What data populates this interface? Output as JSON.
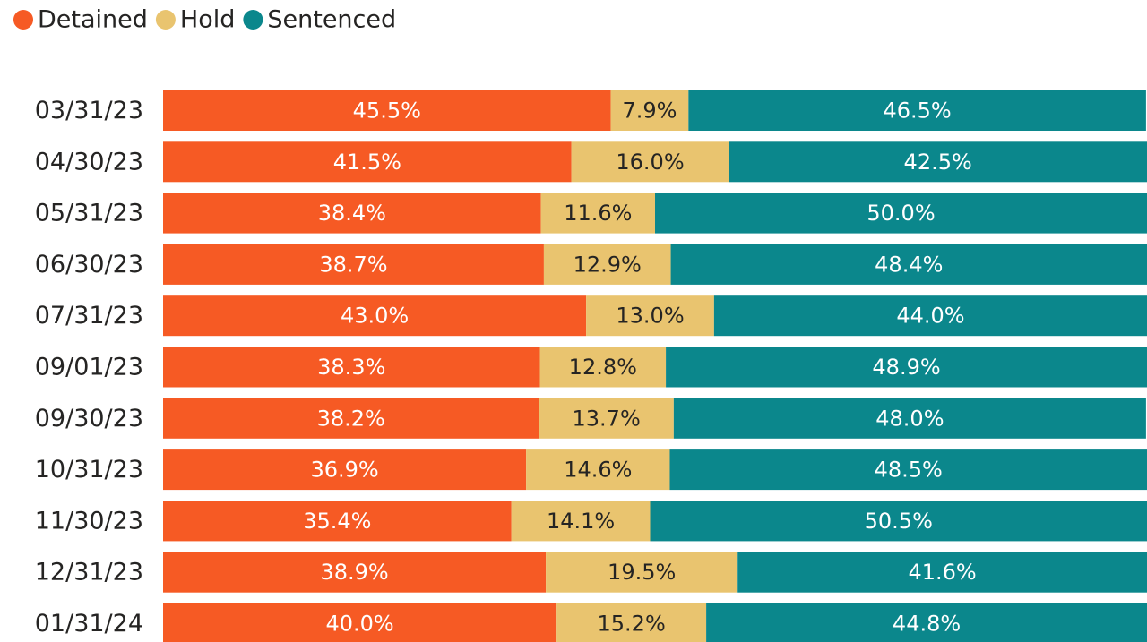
{
  "chart_data": {
    "type": "stacked-bar-horizontal",
    "categories": [
      "03/31/23",
      "04/30/23",
      "05/31/23",
      "06/30/23",
      "07/31/23",
      "09/01/23",
      "09/30/23",
      "10/31/23",
      "11/30/23",
      "12/31/23",
      "01/31/24"
    ],
    "xlim": [
      0,
      100
    ],
    "legend": "top-left",
    "series": [
      {
        "name": "Detained",
        "color": "#f65a24",
        "label_color": "#ffffff",
        "values": [
          45.5,
          41.5,
          38.4,
          38.7,
          43.0,
          38.3,
          38.2,
          36.9,
          35.4,
          38.9,
          40.0
        ],
        "value_labels": [
          "45.5%",
          "41.5%",
          "38.4%",
          "38.7%",
          "43.0%",
          "38.3%",
          "38.2%",
          "36.9%",
          "35.4%",
          "38.9%",
          "40.0%"
        ]
      },
      {
        "name": "Hold",
        "color": "#e9c46f",
        "label_color": "#252423",
        "values": [
          7.9,
          16.0,
          11.6,
          12.9,
          13.0,
          12.8,
          13.7,
          14.6,
          14.1,
          19.5,
          15.2
        ],
        "value_labels": [
          "7.9%",
          "16.0%",
          "11.6%",
          "12.9%",
          "13.0%",
          "12.8%",
          "13.7%",
          "14.6%",
          "14.1%",
          "19.5%",
          "15.2%"
        ]
      },
      {
        "name": "Sentenced",
        "color": "#0b878c",
        "label_color": "#ffffff",
        "values": [
          46.5,
          42.5,
          50.0,
          48.4,
          44.0,
          48.9,
          48.0,
          48.5,
          50.5,
          41.6,
          44.8
        ],
        "value_labels": [
          "46.5%",
          "42.5%",
          "50.0%",
          "48.4%",
          "44.0%",
          "48.9%",
          "48.0%",
          "48.5%",
          "50.5%",
          "41.6%",
          "44.8%"
        ]
      }
    ]
  }
}
